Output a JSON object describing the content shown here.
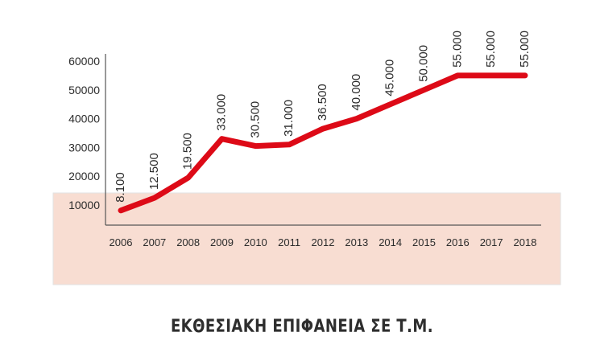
{
  "chart_data": {
    "type": "line",
    "title": "ΕΚΘΕΣΙΑΚΗ ΕΠΙΦΑΝΕΙΑ ΣΕ Τ.Μ.",
    "categories": [
      "2006",
      "2007",
      "2008",
      "2009",
      "2010",
      "2011",
      "2012",
      "2013",
      "2014",
      "2015",
      "2016",
      "2017",
      "2018"
    ],
    "values": [
      8100,
      12500,
      19500,
      33000,
      30500,
      31000,
      36500,
      40000,
      45000,
      50000,
      55000,
      55000,
      55000
    ],
    "data_labels": [
      "8.100",
      "12.500",
      "19.500",
      "33.000",
      "30.500",
      "31.000",
      "36.500",
      "40.000",
      "45.000",
      "50.000",
      "55.000",
      "55.000",
      "55.000"
    ],
    "yticks": [
      "10000",
      "20000",
      "30000",
      "40000",
      "50000",
      "60000"
    ],
    "ylim": [
      10000,
      60000
    ],
    "line_color": "#dd0a17",
    "band_color": "#f8ddd2",
    "grid": false
  }
}
